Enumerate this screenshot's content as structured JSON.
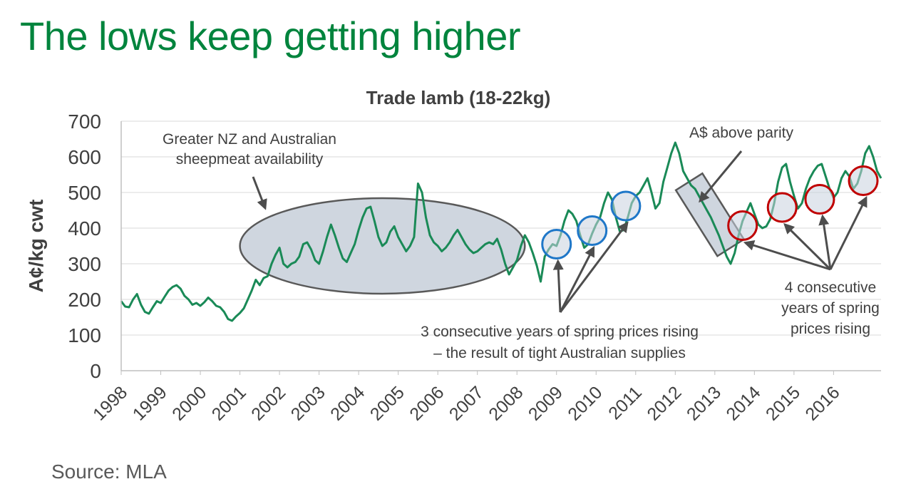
{
  "slide": {
    "title": "The lows keep getting higher",
    "source": "Source: MLA"
  },
  "colors": {
    "title_green": "#00843d",
    "series_line": "#1a8a57",
    "highlight_fill": "#cfd6df",
    "circle_blue": "#1f77c8",
    "circle_red": "#c00000",
    "arrow": "#4d4d4d"
  },
  "chart_data": {
    "type": "line",
    "title": "Trade lamb (18-22kg)",
    "xlabel": "",
    "ylabel": "A¢/kg cwt",
    "ylim": [
      0,
      700
    ],
    "yticks": [
      0,
      100,
      200,
      300,
      400,
      500,
      600,
      700
    ],
    "xlim": [
      1998,
      2017.2
    ],
    "xticks": [
      "1998",
      "1999",
      "2000",
      "2001",
      "2002",
      "2003",
      "2004",
      "2005",
      "2006",
      "2007",
      "2008",
      "2009",
      "2010",
      "2011",
      "2012",
      "2013",
      "2014",
      "2015",
      "2016"
    ],
    "grid": true,
    "legend": "none",
    "series": [
      {
        "points": [
          [
            1998.0,
            195
          ],
          [
            1998.1,
            180
          ],
          [
            1998.2,
            178
          ],
          [
            1998.3,
            200
          ],
          [
            1998.4,
            215
          ],
          [
            1998.5,
            185
          ],
          [
            1998.6,
            165
          ],
          [
            1998.7,
            160
          ],
          [
            1998.8,
            178
          ],
          [
            1998.9,
            195
          ],
          [
            1999.0,
            190
          ],
          [
            1999.1,
            208
          ],
          [
            1999.2,
            225
          ],
          [
            1999.3,
            235
          ],
          [
            1999.4,
            240
          ],
          [
            1999.5,
            230
          ],
          [
            1999.6,
            210
          ],
          [
            1999.7,
            200
          ],
          [
            1999.8,
            185
          ],
          [
            1999.9,
            190
          ],
          [
            2000.0,
            182
          ],
          [
            2000.1,
            192
          ],
          [
            2000.2,
            205
          ],
          [
            2000.3,
            195
          ],
          [
            2000.4,
            182
          ],
          [
            2000.5,
            178
          ],
          [
            2000.6,
            165
          ],
          [
            2000.7,
            145
          ],
          [
            2000.8,
            140
          ],
          [
            2000.9,
            152
          ],
          [
            2001.0,
            162
          ],
          [
            2001.1,
            175
          ],
          [
            2001.2,
            200
          ],
          [
            2001.3,
            225
          ],
          [
            2001.4,
            255
          ],
          [
            2001.5,
            240
          ],
          [
            2001.6,
            260
          ],
          [
            2001.7,
            265
          ],
          [
            2001.8,
            300
          ],
          [
            2001.9,
            325
          ],
          [
            2002.0,
            345
          ],
          [
            2002.1,
            300
          ],
          [
            2002.2,
            290
          ],
          [
            2002.3,
            300
          ],
          [
            2002.4,
            305
          ],
          [
            2002.5,
            320
          ],
          [
            2002.6,
            355
          ],
          [
            2002.7,
            360
          ],
          [
            2002.8,
            340
          ],
          [
            2002.9,
            310
          ],
          [
            2003.0,
            300
          ],
          [
            2003.1,
            335
          ],
          [
            2003.2,
            375
          ],
          [
            2003.3,
            410
          ],
          [
            2003.4,
            380
          ],
          [
            2003.5,
            345
          ],
          [
            2003.6,
            315
          ],
          [
            2003.7,
            305
          ],
          [
            2003.8,
            330
          ],
          [
            2003.9,
            355
          ],
          [
            2004.0,
            395
          ],
          [
            2004.1,
            430
          ],
          [
            2004.2,
            455
          ],
          [
            2004.3,
            460
          ],
          [
            2004.4,
            420
          ],
          [
            2004.5,
            375
          ],
          [
            2004.6,
            350
          ],
          [
            2004.7,
            360
          ],
          [
            2004.8,
            390
          ],
          [
            2004.9,
            405
          ],
          [
            2005.0,
            375
          ],
          [
            2005.1,
            355
          ],
          [
            2005.2,
            335
          ],
          [
            2005.3,
            350
          ],
          [
            2005.4,
            375
          ],
          [
            2005.5,
            525
          ],
          [
            2005.6,
            500
          ],
          [
            2005.7,
            430
          ],
          [
            2005.8,
            380
          ],
          [
            2005.9,
            360
          ],
          [
            2006.0,
            350
          ],
          [
            2006.1,
            335
          ],
          [
            2006.2,
            345
          ],
          [
            2006.3,
            360
          ],
          [
            2006.4,
            380
          ],
          [
            2006.5,
            395
          ],
          [
            2006.6,
            375
          ],
          [
            2006.7,
            355
          ],
          [
            2006.8,
            340
          ],
          [
            2006.9,
            330
          ],
          [
            2007.0,
            335
          ],
          [
            2007.1,
            345
          ],
          [
            2007.2,
            355
          ],
          [
            2007.3,
            360
          ],
          [
            2007.4,
            355
          ],
          [
            2007.5,
            370
          ],
          [
            2007.6,
            340
          ],
          [
            2007.7,
            300
          ],
          [
            2007.8,
            270
          ],
          [
            2007.9,
            290
          ],
          [
            2008.0,
            310
          ],
          [
            2008.1,
            350
          ],
          [
            2008.2,
            380
          ],
          [
            2008.3,
            360
          ],
          [
            2008.4,
            330
          ],
          [
            2008.5,
            295
          ],
          [
            2008.6,
            250
          ],
          [
            2008.7,
            320
          ],
          [
            2008.8,
            340
          ],
          [
            2008.9,
            355
          ],
          [
            2009.0,
            350
          ],
          [
            2009.1,
            380
          ],
          [
            2009.2,
            420
          ],
          [
            2009.3,
            450
          ],
          [
            2009.4,
            440
          ],
          [
            2009.5,
            420
          ],
          [
            2009.6,
            380
          ],
          [
            2009.7,
            345
          ],
          [
            2009.8,
            355
          ],
          [
            2009.9,
            385
          ],
          [
            2010.0,
            410
          ],
          [
            2010.1,
            430
          ],
          [
            2010.2,
            470
          ],
          [
            2010.3,
            500
          ],
          [
            2010.4,
            480
          ],
          [
            2010.5,
            430
          ],
          [
            2010.6,
            390
          ],
          [
            2010.7,
            395
          ],
          [
            2010.8,
            430
          ],
          [
            2010.9,
            470
          ],
          [
            2011.0,
            490
          ],
          [
            2011.1,
            500
          ],
          [
            2011.2,
            520
          ],
          [
            2011.3,
            540
          ],
          [
            2011.4,
            500
          ],
          [
            2011.5,
            455
          ],
          [
            2011.6,
            470
          ],
          [
            2011.7,
            530
          ],
          [
            2011.8,
            570
          ],
          [
            2011.9,
            610
          ],
          [
            2012.0,
            640
          ],
          [
            2012.1,
            610
          ],
          [
            2012.2,
            560
          ],
          [
            2012.3,
            540
          ],
          [
            2012.4,
            520
          ],
          [
            2012.5,
            510
          ],
          [
            2012.6,
            490
          ],
          [
            2012.7,
            470
          ],
          [
            2012.8,
            450
          ],
          [
            2012.9,
            430
          ],
          [
            2013.0,
            405
          ],
          [
            2013.1,
            380
          ],
          [
            2013.2,
            350
          ],
          [
            2013.3,
            320
          ],
          [
            2013.4,
            300
          ],
          [
            2013.5,
            330
          ],
          [
            2013.6,
            380
          ],
          [
            2013.7,
            420
          ],
          [
            2013.8,
            445
          ],
          [
            2013.9,
            470
          ],
          [
            2014.0,
            440
          ],
          [
            2014.1,
            410
          ],
          [
            2014.2,
            400
          ],
          [
            2014.3,
            405
          ],
          [
            2014.4,
            425
          ],
          [
            2014.5,
            470
          ],
          [
            2014.6,
            530
          ],
          [
            2014.7,
            570
          ],
          [
            2014.8,
            580
          ],
          [
            2014.9,
            530
          ],
          [
            2015.0,
            490
          ],
          [
            2015.1,
            455
          ],
          [
            2015.2,
            470
          ],
          [
            2015.3,
            510
          ],
          [
            2015.4,
            540
          ],
          [
            2015.5,
            560
          ],
          [
            2015.6,
            575
          ],
          [
            2015.7,
            580
          ],
          [
            2015.8,
            545
          ],
          [
            2015.9,
            510
          ],
          [
            2016.0,
            485
          ],
          [
            2016.1,
            500
          ],
          [
            2016.2,
            540
          ],
          [
            2016.3,
            560
          ],
          [
            2016.4,
            545
          ],
          [
            2016.5,
            510
          ],
          [
            2016.6,
            525
          ],
          [
            2016.7,
            560
          ],
          [
            2016.8,
            610
          ],
          [
            2016.9,
            630
          ],
          [
            2017.0,
            600
          ],
          [
            2017.1,
            560
          ],
          [
            2017.2,
            540
          ]
        ]
      }
    ],
    "annotations": [
      {
        "name": "supply-note",
        "lines": [
          "Greater NZ and Australian",
          "sheepmeat availability"
        ]
      },
      {
        "name": "parity-note",
        "lines": [
          "A$ above parity"
        ]
      },
      {
        "name": "three-years-note",
        "lines": [
          "3 consecutive years of spring prices rising",
          "– the result of tight Australian supplies"
        ]
      },
      {
        "name": "four-years-note",
        "lines": [
          "4 consecutive",
          "years of spring",
          "prices rising"
        ]
      }
    ],
    "highlights": {
      "supply_period": [
        2001.0,
        2008.2
      ],
      "blue_circles": [
        [
          2009.0,
          355
        ],
        [
          2009.9,
          393
        ],
        [
          2010.75,
          462
        ]
      ],
      "red_circles": [
        [
          2013.7,
          407
        ],
        [
          2014.7,
          458
        ],
        [
          2015.65,
          481
        ],
        [
          2016.75,
          533
        ]
      ]
    }
  }
}
